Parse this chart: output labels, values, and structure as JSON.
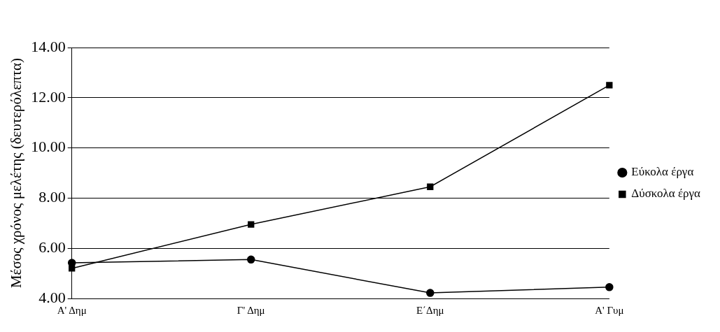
{
  "chart_data": {
    "type": "line",
    "ylabel": "Μέσος χρόνος μελέτης (δευτερόλεπτα)",
    "categories": [
      "Α' Δημ",
      "Γ' Δημ",
      "Ε΄Δημ",
      "Α' Γυμ"
    ],
    "series": [
      {
        "name": "Εύκολα έργα",
        "color": "#000000",
        "marker": "circle",
        "values": [
          5.42,
          5.55,
          4.22,
          4.45
        ]
      },
      {
        "name": "Δύσκολα έργα",
        "color": "#000000",
        "marker": "square",
        "values": [
          5.2,
          6.95,
          8.45,
          12.5
        ]
      }
    ],
    "ylim": [
      4,
      14
    ],
    "yticks": [
      {
        "value": 4,
        "label": "4.00"
      },
      {
        "value": 6,
        "label": "6.00"
      },
      {
        "value": 8,
        "label": "8.00"
      },
      {
        "value": 10,
        "label": "10.00"
      },
      {
        "value": 12,
        "label": "12.00"
      },
      {
        "value": 14,
        "label": "14.00"
      }
    ],
    "grid": "y",
    "legend": "right",
    "line_style": "solid"
  }
}
